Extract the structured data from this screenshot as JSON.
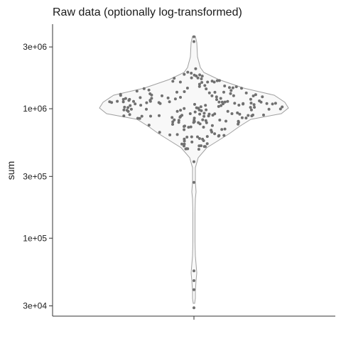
{
  "chart_data": {
    "type": "violin",
    "title": "Raw data (optionally log-transformed)",
    "ylabel": "sum",
    "xlabel": "",
    "y_scale": "log10",
    "ylim": [
      25000,
      4500000
    ],
    "y_ticks": [
      {
        "value": 30000,
        "label": "3e+04"
      },
      {
        "value": 100000,
        "label": "1e+05"
      },
      {
        "value": 300000,
        "label": "3e+05"
      },
      {
        "value": 1000000,
        "label": "1e+06"
      },
      {
        "value": 3000000,
        "label": "3e+06"
      }
    ],
    "grid": false,
    "violin_fill": "#f8f8f8",
    "violin_stroke": "#a0a0a0",
    "point_color": "#707070",
    "max": 3600000,
    "min": 29000,
    "outliers": [
      29000,
      40000,
      47000,
      56000,
      270000,
      390000,
      3300000,
      3600000
    ]
  }
}
